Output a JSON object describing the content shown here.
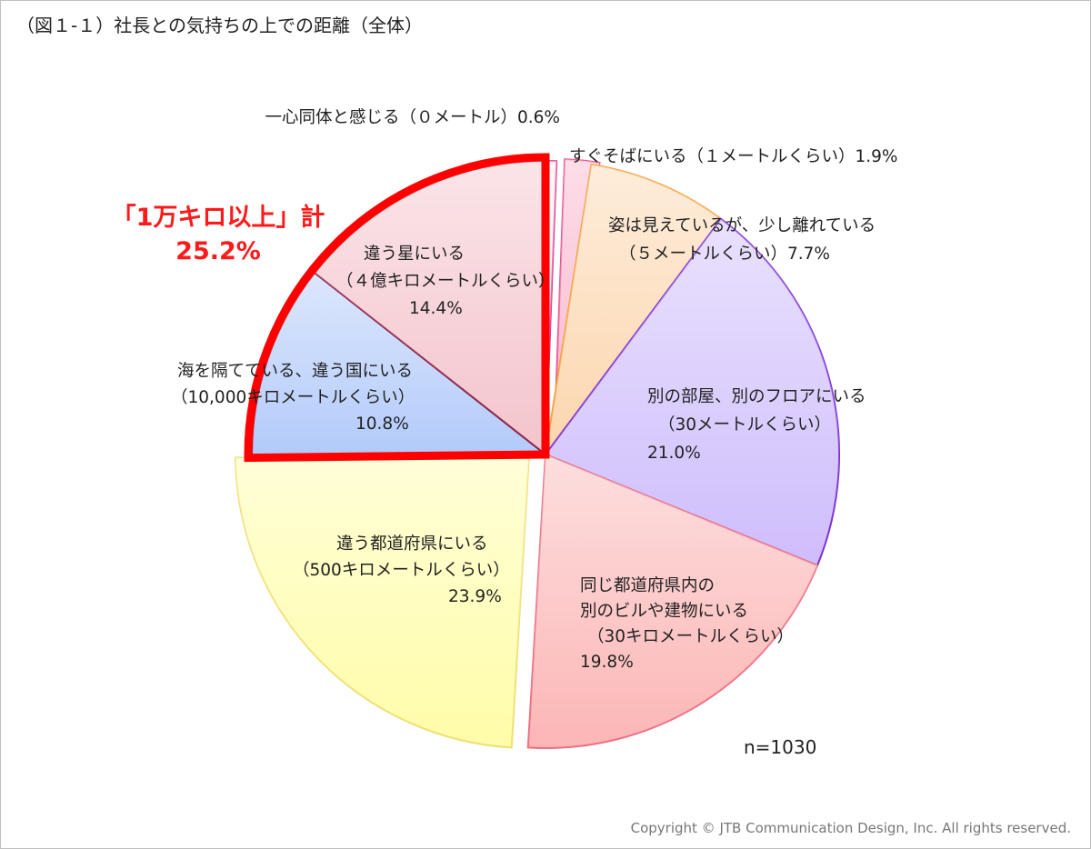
{
  "title": "（図１-１）社長との気持ちの上での距離（全体）",
  "n_label": "n=1030",
  "copyright": "Copyright © JTB Communication Design, Inc. All rights reserved.",
  "highlight": {
    "line1": "「1万キロ以上」計",
    "line2": "25.2%"
  },
  "chart_data": {
    "type": "pie",
    "start": "top",
    "direction": "clockwise",
    "slices": [
      {
        "key": "s0",
        "lines": [
          "一心同体と感じる（０メートル）0.6%"
        ],
        "value": 0.6,
        "fill": "#fbeef4",
        "stroke": "#e04090"
      },
      {
        "key": "s1",
        "lines": [
          "すぐそばにいる（１メートルくらい）1.9%"
        ],
        "value": 1.9,
        "fill": "#f9b4cc",
        "stroke": "#e8508c"
      },
      {
        "key": "s2",
        "lines": [
          "姿は見えているが、少し離れている",
          "（５メートルくらい）7.7%"
        ],
        "value": 7.7,
        "fill": "#fcd6ae",
        "stroke": "#f5a040"
      },
      {
        "key": "s3",
        "lines": [
          "別の部屋、別のフロアにいる",
          "（30メートルくらい）",
          "21.0%"
        ],
        "value": 21.0,
        "fill": "#cfbdfc",
        "stroke": "#7a2ed4"
      },
      {
        "key": "s4",
        "lines": [
          "同じ都道府県内の",
          "別のビルや建物にいる",
          "（30キロメートルくらい）",
          "19.8%"
        ],
        "value": 19.8,
        "fill": "#fcb6b6",
        "stroke": "#ee6e80"
      },
      {
        "key": "s5",
        "lines": [
          "違う都道府県にいる",
          "（500キロメートルくらい）",
          "23.9%"
        ],
        "value": 23.9,
        "fill": "#fffda8",
        "stroke": "#efe070"
      },
      {
        "key": "s6",
        "lines": [
          "海を隔てている、違う国にいる",
          "（10,000キロメートルくらい）",
          "10.8%"
        ],
        "value": 10.8,
        "fill": "#b2cafa",
        "stroke": "#8a2048"
      },
      {
        "key": "s7",
        "lines": [
          "違う星にいる",
          "（４億キロメートルくらい）",
          "14.4%"
        ],
        "value": 14.4,
        "fill": "#f4c4cc",
        "stroke": "#8a2048"
      }
    ],
    "highlighted_slices": [
      "s6",
      "s7"
    ]
  }
}
